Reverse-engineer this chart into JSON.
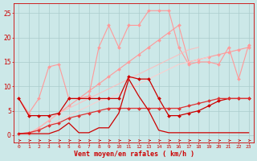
{
  "bg_color": "#cce8e8",
  "grid_color": "#aacccc",
  "xlabel": "Vent moyen/en rafales ( km/h )",
  "ylabel_ticks": [
    0,
    5,
    10,
    15,
    20,
    25
  ],
  "xlim": [
    -0.5,
    23.5
  ],
  "ylim": [
    -1.5,
    27
  ],
  "x": [
    0,
    1,
    2,
    3,
    4,
    5,
    6,
    7,
    8,
    9,
    10,
    11,
    12,
    13,
    14,
    15,
    16,
    17,
    18,
    19,
    20,
    21,
    22,
    23
  ],
  "lines": [
    {
      "y": [
        7.5,
        4.5,
        7.5,
        14.0,
        14.5,
        7.5,
        7.5,
        8.0,
        18.0,
        22.5,
        18.0,
        22.5,
        22.5,
        25.5,
        25.5,
        25.5,
        18.0,
        14.5,
        15.0,
        15.0,
        14.5,
        18.0,
        11.5,
        18.5
      ],
      "color": "#ff9999",
      "lw": 0.8,
      "marker": "D",
      "ms": 2.0
    },
    {
      "y": [
        0.3,
        0.3,
        1.5,
        3.0,
        4.5,
        6.0,
        7.5,
        9.0,
        10.5,
        12.0,
        13.5,
        15.0,
        16.5,
        18.0,
        19.5,
        21.0,
        22.5,
        15.0,
        15.5,
        16.0,
        16.5,
        17.0,
        17.5,
        18.0
      ],
      "color": "#ff9999",
      "lw": 0.8,
      "marker": "D",
      "ms": 2.0
    },
    {
      "y": [
        0.3,
        0.5,
        1.5,
        3.0,
        4.5,
        5.5,
        6.5,
        7.5,
        8.5,
        9.5,
        10.5,
        11.5,
        12.5,
        13.5,
        14.5,
        15.5,
        16.5,
        17.5,
        18.0
      ],
      "color": "#ffbbbb",
      "lw": 0.7,
      "marker": null,
      "ms": 0,
      "x_override": [
        0,
        1,
        2,
        3,
        4,
        5,
        6,
        7,
        8,
        9,
        10,
        11,
        12,
        13,
        14,
        15,
        16,
        17,
        18
      ]
    },
    {
      "y": [
        0.2,
        0.3,
        1.0,
        2.0,
        3.0,
        4.0,
        5.0,
        6.0,
        7.0,
        7.5,
        8.5,
        9.5,
        10.5,
        11.5,
        12.5,
        13.5,
        14.5,
        15.0,
        15.5,
        16.0
      ],
      "color": "#ffcccc",
      "lw": 0.7,
      "marker": null,
      "ms": 0,
      "x_override": [
        0,
        1,
        2,
        3,
        4,
        5,
        6,
        7,
        8,
        9,
        10,
        11,
        12,
        13,
        14,
        15,
        16,
        17,
        18,
        19
      ]
    },
    {
      "y": [
        7.5,
        4.0,
        4.0,
        4.0,
        4.5,
        7.5,
        7.5,
        7.5,
        7.5,
        7.5,
        7.5,
        12.0,
        11.5,
        11.5,
        7.5,
        4.0,
        4.0,
        4.5,
        5.0,
        6.0,
        7.0,
        7.5,
        7.5,
        7.5
      ],
      "color": "#cc0000",
      "lw": 0.9,
      "marker": "D",
      "ms": 2.0
    },
    {
      "y": [
        0.3,
        0.5,
        1.0,
        2.0,
        2.5,
        3.5,
        4.0,
        4.5,
        5.0,
        5.5,
        5.5,
        5.5,
        5.5,
        5.5,
        5.5,
        5.5,
        5.5,
        6.0,
        6.5,
        7.0,
        7.5,
        7.5,
        7.5,
        7.5
      ],
      "color": "#dd3333",
      "lw": 0.9,
      "marker": "D",
      "ms": 2.0
    },
    {
      "y": [
        0.3,
        0.3,
        0.3,
        0.3,
        1.0,
        2.5,
        0.5,
        0.5,
        1.5,
        1.5,
        4.5,
        11.5,
        8.0,
        5.0,
        1.0,
        0.5,
        0.5,
        0.5,
        0.5,
        0.5,
        0.5,
        0.5,
        0.5,
        0.5
      ],
      "color": "#cc0000",
      "lw": 0.9,
      "marker": null,
      "ms": 0
    }
  ],
  "xtick_labels": [
    "0",
    "1",
    "2",
    "3",
    "4",
    "5",
    "6",
    "7",
    "8",
    "9",
    "10",
    "11",
    "12",
    "13",
    "14",
    "15",
    "16",
    "17",
    "18",
    "19",
    "20",
    "21",
    "22",
    "23"
  ],
  "label_color": "#cc0000",
  "tick_color": "#cc0000"
}
